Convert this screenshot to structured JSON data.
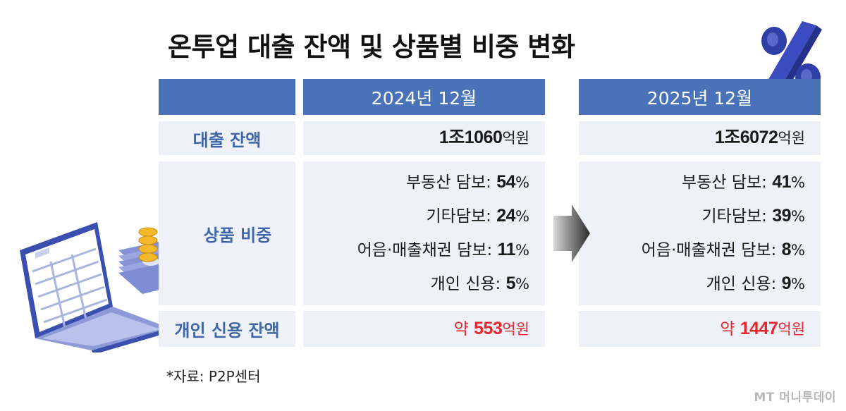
{
  "title": "온투업 대출 잔액 및 상품별 비중 변화",
  "columns": {
    "col1": "2024년 12월",
    "col2": "2025년 12월"
  },
  "rows": {
    "loan_balance": {
      "label": "대출 잔액",
      "v2024": {
        "prefix": "1조",
        "num": "1060",
        "unit": "억원"
      },
      "v2025": {
        "prefix": "1조",
        "num": "6072",
        "unit": "억원"
      }
    },
    "product_share": {
      "label": "상품 비중",
      "v2024": [
        {
          "name": "부동산 담보:",
          "num": "54",
          "unit": "%"
        },
        {
          "name": "기타담보:",
          "num": "24",
          "unit": "%"
        },
        {
          "name": "어음·매출채권 담보:",
          "num": "11",
          "unit": "%"
        },
        {
          "name": "개인 신용:",
          "num": "5",
          "unit": "%"
        }
      ],
      "v2025": [
        {
          "name": "부동산 담보:",
          "num": "41",
          "unit": "%"
        },
        {
          "name": "기타담보:",
          "num": "39",
          "unit": "%"
        },
        {
          "name": "어음·매출채권 담보:",
          "num": "8",
          "unit": "%"
        },
        {
          "name": "개인 신용:",
          "num": "9",
          "unit": "%"
        }
      ]
    },
    "personal_credit": {
      "label": "개인 신용 잔액",
      "v2024": {
        "prefix": "약 ",
        "num": "553",
        "unit": "억원"
      },
      "v2025": {
        "prefix": "약 ",
        "num": "1447",
        "unit": "억원"
      }
    }
  },
  "source": "*자료: P2P센터",
  "logo": "MT 머니투데이",
  "colors": {
    "header": "#4a72b8",
    "cell_bg": "#eef1f8",
    "label_text": "#3e66a8",
    "highlight": "#e8262b"
  },
  "icons": [
    "percent-icon",
    "arrow-right-icon",
    "laptop-money-illustration"
  ]
}
